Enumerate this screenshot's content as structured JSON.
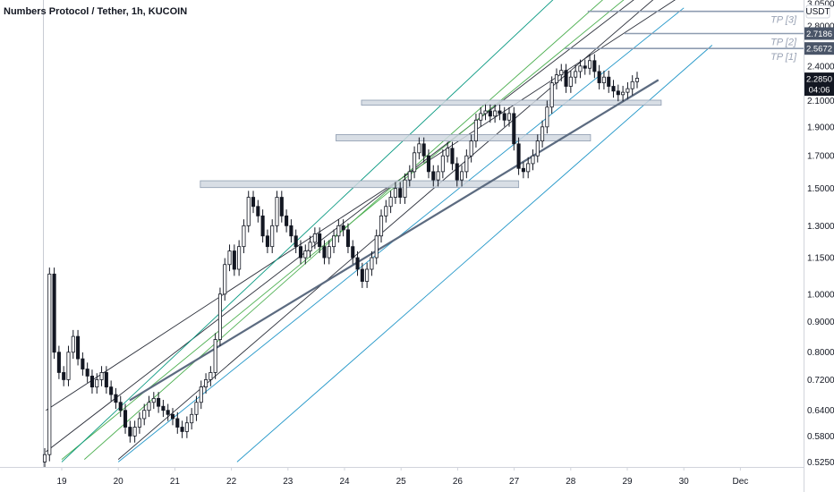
{
  "title": "Numbers Protocol / Tether, 1h, KUCOIN",
  "currency": "USDT",
  "colors": {
    "candle_up": "#ffffff",
    "candle_down": "#131722",
    "wick": "#131722",
    "zone_fill": "#d1d8e0",
    "zone_stroke": "#8e9cb0",
    "trendline": "#5c6b80",
    "tp_line": "#8e9cb0",
    "channel_black": "#2a2e39",
    "channel_green": "#4caf50",
    "channel_teal": "#089981",
    "channel_blue": "#2196c8",
    "price_tag": "#4a5568",
    "price_tag_dark": "#131722"
  },
  "price_tags": [
    {
      "label": "2.7186"
    },
    {
      "label": "2.5672"
    },
    {
      "label": "2.2850",
      "sub": "04:06",
      "dark": true
    }
  ],
  "take_profits": [
    {
      "label": "TP [3]",
      "price": 2.96
    },
    {
      "label": "TP [2]",
      "price": 2.7186
    },
    {
      "label": "TP [1]",
      "price": 2.5672
    }
  ],
  "chart_data": {
    "type": "candlestick",
    "title": "Numbers Protocol / Tether, 1h, KUCOIN",
    "y_scale": "log",
    "ylim": [
      0.515,
      3.05
    ],
    "y_ticks": [
      "0.5250",
      "0.5800",
      "0.6400",
      "0.7200",
      "0.8000",
      "0.9000",
      "1.0000",
      "1.1500",
      "1.3000",
      "1.5000",
      "1.7000",
      "1.9000",
      "2.1000",
      "2.4000",
      "2.8000",
      "3.0500"
    ],
    "x_ticks": [
      "19",
      "20",
      "21",
      "22",
      "23",
      "24",
      "25",
      "26",
      "27",
      "28",
      "29",
      "30",
      "Dec"
    ],
    "x_range_days": [
      18.7,
      31.0
    ],
    "closes": [
      0.54,
      1.08,
      0.8,
      0.74,
      0.72,
      0.8,
      0.85,
      0.78,
      0.75,
      0.73,
      0.7,
      0.72,
      0.74,
      0.7,
      0.68,
      0.66,
      0.64,
      0.6,
      0.58,
      0.6,
      0.62,
      0.64,
      0.66,
      0.67,
      0.65,
      0.64,
      0.63,
      0.62,
      0.6,
      0.59,
      0.61,
      0.63,
      0.66,
      0.7,
      0.72,
      0.74,
      0.84,
      1.0,
      1.12,
      1.18,
      1.1,
      1.2,
      1.3,
      1.45,
      1.4,
      1.35,
      1.25,
      1.2,
      1.3,
      1.45,
      1.35,
      1.3,
      1.25,
      1.2,
      1.15,
      1.18,
      1.22,
      1.26,
      1.2,
      1.15,
      1.2,
      1.25,
      1.3,
      1.28,
      1.2,
      1.15,
      1.1,
      1.05,
      1.1,
      1.15,
      1.25,
      1.35,
      1.4,
      1.45,
      1.5,
      1.45,
      1.55,
      1.6,
      1.72,
      1.78,
      1.7,
      1.6,
      1.55,
      1.6,
      1.7,
      1.75,
      1.65,
      1.55,
      1.6,
      1.7,
      1.8,
      1.95,
      2.0,
      2.02,
      1.98,
      2.02,
      2.0,
      1.95,
      2.0,
      1.78,
      1.62,
      1.6,
      1.65,
      1.7,
      1.8,
      1.9,
      2.05,
      2.25,
      2.32,
      2.36,
      2.22,
      2.3,
      2.35,
      2.4,
      2.38,
      2.45,
      2.35,
      2.25,
      2.3,
      2.22,
      2.18,
      2.15,
      2.17,
      2.2,
      2.26,
      2.29
    ]
  }
}
